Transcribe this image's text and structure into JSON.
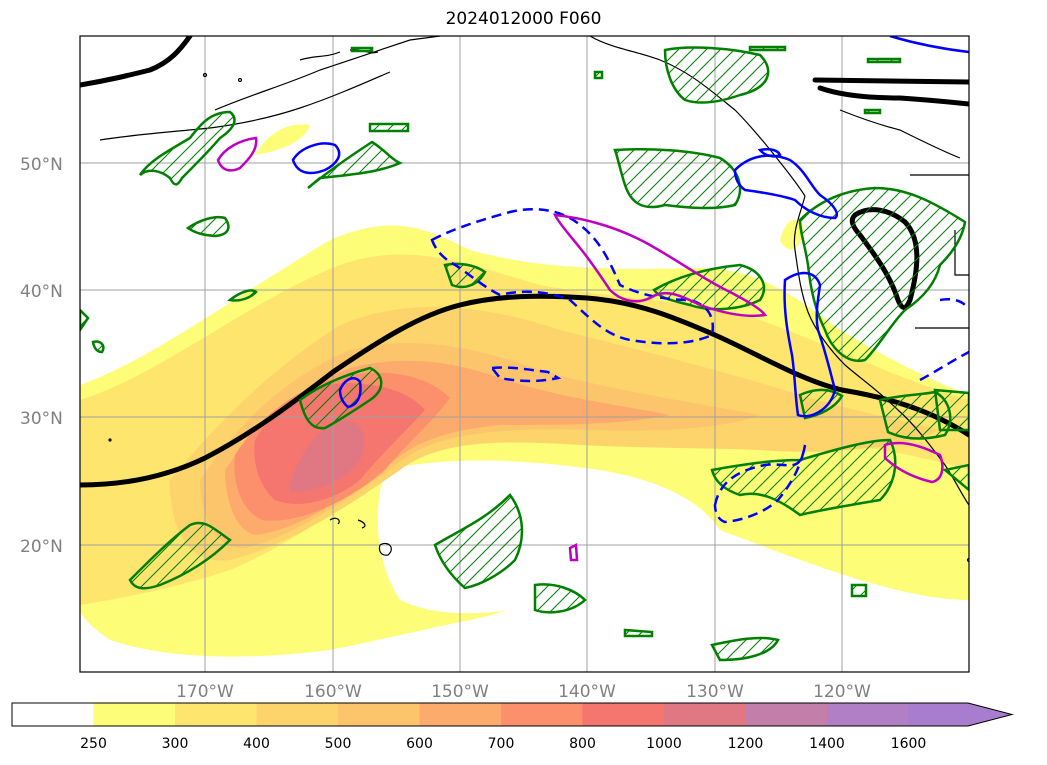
{
  "title": "2024012000 F060",
  "map": {
    "lat_ticks": [
      "50°N",
      "40°N",
      "30°N",
      "20°N"
    ],
    "lon_ticks": [
      "170°W",
      "160°W",
      "150°W",
      "140°W",
      "130°W",
      "120°W"
    ],
    "gridlines": true
  },
  "colorbar": {
    "levels": [
      "250",
      "300",
      "400",
      "500",
      "600",
      "700",
      "800",
      "1000",
      "1200",
      "1400",
      "1600"
    ],
    "colors": [
      "#ffffff",
      "#fdfd78",
      "#fde56e",
      "#fdd46c",
      "#fcc56c",
      "#fcab6c",
      "#fc8f6c",
      "#f4766f",
      "#e07883",
      "#c47eaa",
      "#b07fc5",
      "#a87dd0"
    ],
    "extend": "max"
  },
  "contour_colors": {
    "thick_line": "#000000",
    "hatched_outline": "#008000",
    "solid_blue": "#0000ff",
    "dashed_blue": "#0000ff",
    "magenta": "#c000c0"
  }
}
